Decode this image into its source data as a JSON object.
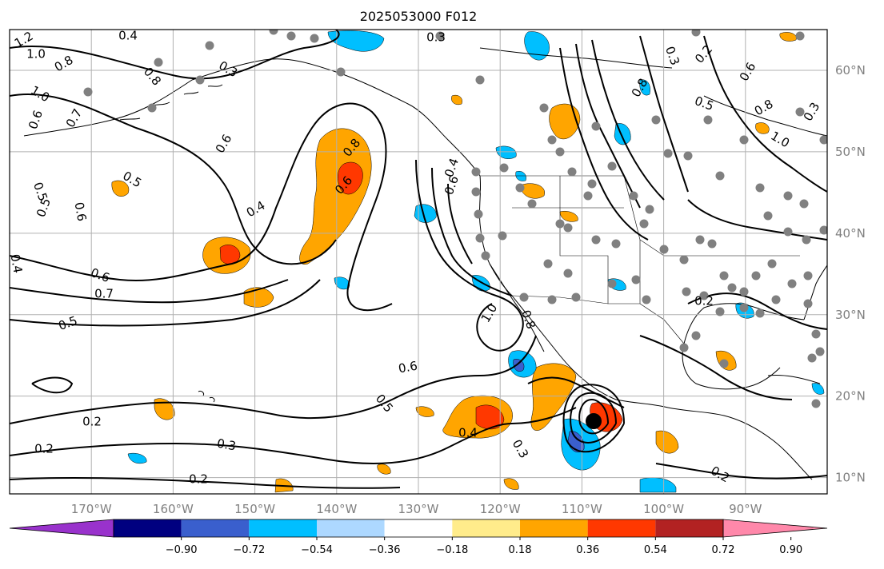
{
  "title": "2025053000 F012",
  "map": {
    "lon_range": [
      -180,
      -80
    ],
    "lat_range": [
      8,
      65
    ],
    "gridlines": true,
    "lon_labels": [
      "170°W",
      "160°W",
      "150°W",
      "140°W",
      "130°W",
      "120°W",
      "110°W",
      "100°W",
      "90°W"
    ],
    "lat_labels": [
      "60°N",
      "50°N",
      "40°N",
      "30°N",
      "20°N",
      "10°N"
    ],
    "lat_label_side": "right",
    "lon_label_side": "bottom"
  },
  "contour_labels": [
    "1.2",
    "1.0",
    "0.8",
    "0.6",
    "0.4",
    "0.3",
    "1.0",
    "0.7",
    "0.8",
    "0.6",
    "0.5",
    "0.5",
    "0.6",
    "0.5",
    "0.4",
    "0.8",
    "0.6",
    "0.4",
    "0.6",
    "0.7",
    "0.5",
    "0.6",
    "0.5",
    "0.4",
    "0.2",
    "0.2",
    "0.3",
    "0.2",
    "0.3",
    "0.2",
    "1.0",
    "0.8",
    "0.6",
    "0.4",
    "0.8",
    "0.2",
    "0.3",
    "0.6",
    "0.5",
    "0.8",
    "1.0",
    "0.3",
    "0.2",
    "0.3"
  ],
  "colorbar": {
    "orientation": "horizontal",
    "extend": "both",
    "tick_labels": [
      "−0.90",
      "−0.72",
      "−0.54",
      "−0.36",
      "−0.18",
      "0.18",
      "0.36",
      "0.54",
      "0.72",
      "0.90"
    ],
    "under_color": "#9932cc",
    "over_color": "#ff88aa",
    "colors": [
      "#000080",
      "#3a5fcd",
      "#00bfff",
      "#add8ff",
      "#ffffff",
      "#ffec8b",
      "#ffa500",
      "#ff3800",
      "#b22222"
    ]
  },
  "colors": {
    "contour": "#000000",
    "grid": "#b0b0b0",
    "station": "#808080",
    "tropical_center": "#000000"
  }
}
